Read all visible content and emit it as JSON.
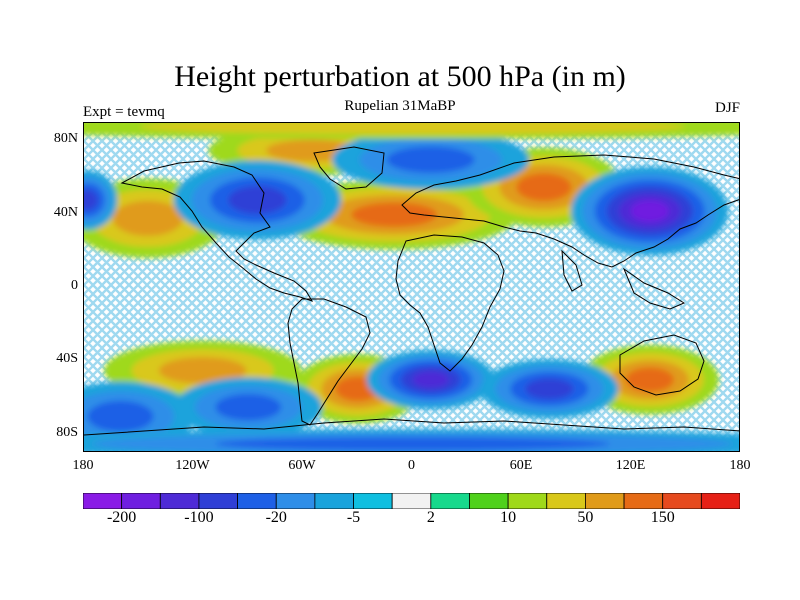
{
  "title": "Height perturbation at 500 hPa (in m)",
  "left_label": "Expt = tevmq",
  "center_label": "Rupelian  31MaBP",
  "right_label": "DJF",
  "map": {
    "projection": "cylindrical-equidistant",
    "lon_range": [
      -180,
      180
    ],
    "lat_range": [
      -90,
      90
    ],
    "lat_ticks": [
      {
        "lat": 80,
        "label": "80N"
      },
      {
        "lat": 40,
        "label": "40N"
      },
      {
        "lat": 0,
        "label": "0"
      },
      {
        "lat": -40,
        "label": "40S"
      },
      {
        "lat": -80,
        "label": "80S"
      }
    ],
    "lon_ticks": [
      {
        "lon": -180,
        "label": "180"
      },
      {
        "lon": -120,
        "label": "120W"
      },
      {
        "lon": -60,
        "label": "60W"
      },
      {
        "lon": 0,
        "label": "0"
      },
      {
        "lon": 60,
        "label": "60E"
      },
      {
        "lon": 120,
        "label": "120E"
      },
      {
        "lon": 180,
        "label": "180"
      }
    ],
    "features": [
      {
        "lon": -145,
        "lat": 38,
        "value": 80,
        "w": 32,
        "h": 16
      },
      {
        "lon": -10,
        "lat": 40,
        "value": 130,
        "w": 50,
        "h": 14
      },
      {
        "lon": 72,
        "lat": 55,
        "value": 110,
        "w": 32,
        "h": 16
      },
      {
        "lon": -55,
        "lat": 75,
        "value": 60,
        "w": 42,
        "h": 10
      },
      {
        "lon": -30,
        "lat": -55,
        "value": 120,
        "w": 26,
        "h": 14
      },
      {
        "lon": -115,
        "lat": -45,
        "value": 70,
        "w": 40,
        "h": 12
      },
      {
        "lon": 130,
        "lat": -50,
        "value": 130,
        "w": 28,
        "h": 14
      },
      {
        "lon": 130,
        "lat": 42,
        "value": -170,
        "w": 32,
        "h": 18
      },
      {
        "lon": -85,
        "lat": 48,
        "value": -70,
        "w": 34,
        "h": 16
      },
      {
        "lon": 10,
        "lat": 70,
        "value": -30,
        "w": 40,
        "h": 12
      },
      {
        "lon": -178,
        "lat": 48,
        "value": -60,
        "w": 12,
        "h": 12
      },
      {
        "lon": 10,
        "lat": -50,
        "value": -100,
        "w": 26,
        "h": 12
      },
      {
        "lon": -90,
        "lat": -65,
        "value": -40,
        "w": 30,
        "h": 12
      },
      {
        "lon": 75,
        "lat": -55,
        "value": -70,
        "w": 28,
        "h": 12
      },
      {
        "lon": -160,
        "lat": -70,
        "value": -30,
        "w": 30,
        "h": 14
      },
      {
        "lon": 0,
        "lat": -85,
        "value": -20,
        "w": 180,
        "h": 6
      },
      {
        "lon": 0,
        "lat": 88,
        "value": 20,
        "w": 180,
        "h": 5
      }
    ],
    "coastline_color": "#000000"
  },
  "colorbar": {
    "colors": [
      "#8a1be6",
      "#6f1fe0",
      "#4e2bd6",
      "#2f3fd6",
      "#1e60e6",
      "#2f8ee8",
      "#1aa3dc",
      "#10bfe0",
      "#f2f2f2",
      "#17d98c",
      "#4fd11b",
      "#9fd91a",
      "#d9c81a",
      "#e09b1a",
      "#e66b16",
      "#e64a1e",
      "#e62016"
    ],
    "labels": [
      {
        "boundary": 1,
        "text": "-200"
      },
      {
        "boundary": 3,
        "text": "-100"
      },
      {
        "boundary": 5,
        "text": "-20"
      },
      {
        "boundary": 7,
        "text": "-5"
      },
      {
        "boundary": 9,
        "text": "2"
      },
      {
        "boundary": 11,
        "text": "10"
      },
      {
        "boundary": 13,
        "text": "50"
      },
      {
        "boundary": 15,
        "text": "150"
      }
    ],
    "bounds": [
      -300,
      -200,
      -150,
      -100,
      -50,
      -20,
      -10,
      -5,
      -2,
      2,
      5,
      10,
      20,
      50,
      100,
      150,
      200,
      300
    ]
  }
}
